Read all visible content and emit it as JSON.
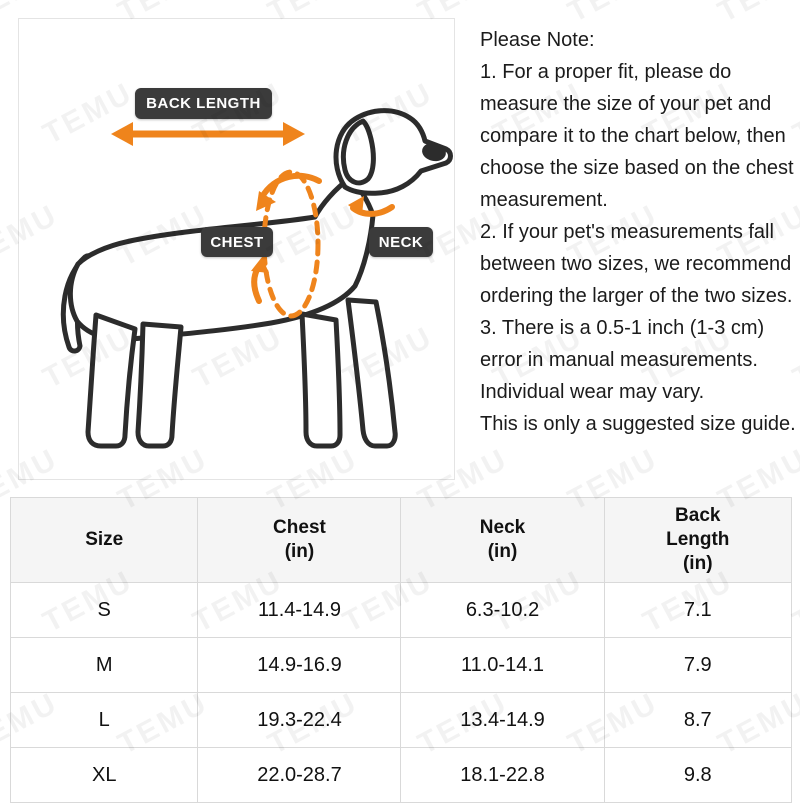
{
  "watermark": {
    "text": "TEMU",
    "color": "rgba(0,0,0,0.05)"
  },
  "illustration": {
    "labels": {
      "back_length": "BACK LENGTH",
      "chest": "CHEST",
      "neck": "NECK"
    },
    "colors": {
      "arrow_orange": "#EF841C",
      "badge_dark": "#3B3B3B",
      "dog_outline": "#2C2C2C"
    }
  },
  "notes": {
    "title": "Please Note:",
    "items": [
      "1. For a proper fit, please do measure the size of your pet and compare it to the chart below, then choose the size based on the chest measurement.",
      "2. If your pet's measurements fall between two sizes, we recommend ordering the larger of the two sizes.",
      "3. There is a 0.5-1 inch (1-3 cm) error in manual measurements. Individual wear may vary.",
      "This is only a suggested size guide."
    ]
  },
  "size_table": {
    "headers": [
      {
        "label": "Size",
        "unit": ""
      },
      {
        "label": "Chest",
        "unit": "(in)"
      },
      {
        "label": "Neck",
        "unit": "(in)"
      },
      {
        "label": "Back Length",
        "unit": "(in)"
      }
    ],
    "rows": [
      {
        "size": "S",
        "chest": "11.4-14.9",
        "neck": "6.3-10.2",
        "back_length": "7.1"
      },
      {
        "size": "M",
        "chest": "14.9-16.9",
        "neck": "11.0-14.1",
        "back_length": "7.9"
      },
      {
        "size": "L",
        "chest": "19.3-22.4",
        "neck": "13.4-14.9",
        "back_length": "8.7"
      },
      {
        "size": "XL",
        "chest": "22.0-28.7",
        "neck": "18.1-22.8",
        "back_length": "9.8"
      }
    ]
  }
}
